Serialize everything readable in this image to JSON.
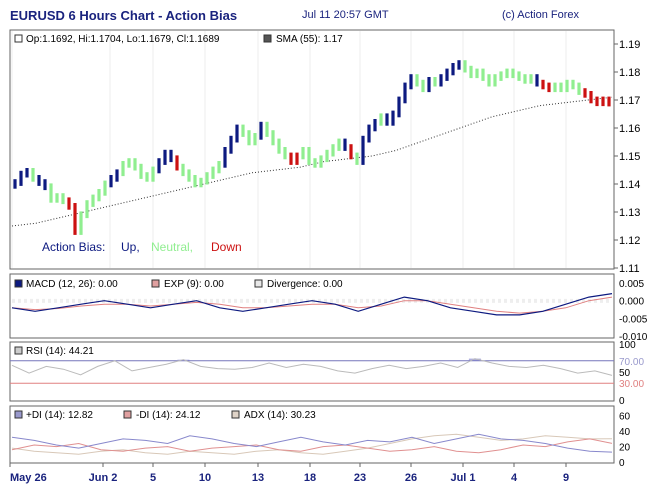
{
  "header": {
    "title": "EURUSD 6 Hours Chart - Action Bias",
    "timestamp": "Jul 11 20:57 GMT",
    "copyright": "(c) Action Forex"
  },
  "colors": {
    "up": "#0d1a80",
    "neutral": "#90ee90",
    "down": "#cc1111",
    "sma": "#333333",
    "macd": "#0d1a80",
    "exp": "#e08080",
    "rsi": "#bbbbbb",
    "rsi_fill": "#7777cc",
    "pdi": "#8888cc",
    "mdi": "#e09090",
    "adx": "#d8c8b8"
  },
  "chart_data": [
    {
      "type": "ohlc",
      "panel": "price",
      "legend": {
        "ohlc": "Op:1.1692, Hi:1.1704, Lo:1.1679, Cl:1.1689",
        "sma": "SMA (55): 1.17"
      },
      "bias_legend": {
        "label": "Action Bias:",
        "up": "Up,",
        "neutral": "Neutral,",
        "down": "Down"
      },
      "ylim": [
        1.11,
        1.195
      ],
      "yticks": [
        "1.19",
        "1.18",
        "1.17",
        "1.16",
        "1.15",
        "1.14",
        "1.13",
        "1.12",
        "1.11"
      ],
      "xticks": [
        "May 26",
        "Jun 2",
        "5",
        "10",
        "13",
        "18",
        "23",
        "26",
        "Jul 1",
        "4",
        "9"
      ],
      "closes": [
        1.1405,
        1.1435,
        1.1445,
        1.142,
        1.1405,
        1.139,
        1.1345,
        1.1355,
        1.134,
        1.132,
        1.123,
        1.129,
        1.133,
        1.135,
        1.137,
        1.14,
        1.142,
        1.144,
        1.147,
        1.148,
        1.146,
        1.143,
        1.142,
        1.145,
        1.148,
        1.151,
        1.149,
        1.146,
        1.144,
        1.142,
        1.14,
        1.141,
        1.143,
        1.145,
        1.147,
        1.152,
        1.156,
        1.16,
        1.158,
        1.155,
        1.157,
        1.161,
        1.158,
        1.155,
        1.152,
        1.15,
        1.148,
        1.15,
        1.152,
        1.148,
        1.147,
        1.149,
        1.151,
        1.153,
        1.155,
        1.153,
        1.15,
        1.148,
        1.156,
        1.16,
        1.162,
        1.164,
        1.162,
        1.165,
        1.17,
        1.175,
        1.178,
        1.176,
        1.174,
        1.177,
        1.176,
        1.178,
        1.18,
        1.182,
        1.183,
        1.181,
        1.179,
        1.18,
        1.178,
        1.176,
        1.178,
        1.179,
        1.18,
        1.179,
        1.178,
        1.177,
        1.178,
        1.176,
        1.175,
        1.174,
        1.175,
        1.174,
        1.176,
        1.175,
        1.173,
        1.172,
        1.17,
        1.169,
        1.17,
        1.1689
      ],
      "bias": [
        "u",
        "u",
        "u",
        "n",
        "u",
        "u",
        "n",
        "n",
        "n",
        "d",
        "d",
        "n",
        "n",
        "n",
        "n",
        "n",
        "u",
        "u",
        "n",
        "n",
        "n",
        "n",
        "n",
        "n",
        "u",
        "u",
        "u",
        "d",
        "n",
        "n",
        "n",
        "n",
        "n",
        "n",
        "n",
        "u",
        "u",
        "u",
        "n",
        "n",
        "n",
        "u",
        "n",
        "n",
        "n",
        "n",
        "d",
        "d",
        "n",
        "n",
        "n",
        "n",
        "n",
        "n",
        "n",
        "u",
        "d",
        "n",
        "u",
        "u",
        "u",
        "n",
        "u",
        "u",
        "u",
        "u",
        "u",
        "n",
        "n",
        "u",
        "n",
        "u",
        "u",
        "u",
        "u",
        "n",
        "n",
        "n",
        "n",
        "n",
        "n",
        "n",
        "n",
        "n",
        "n",
        "n",
        "n",
        "u",
        "d",
        "d",
        "n",
        "n",
        "n",
        "n",
        "n",
        "d",
        "d",
        "d",
        "d",
        "d"
      ],
      "sma55": [
        1.125,
        1.126,
        1.128,
        1.13,
        1.132,
        1.134,
        1.136,
        1.138,
        1.14,
        1.142,
        1.144,
        1.145,
        1.146,
        1.148,
        1.149,
        1.15,
        1.152,
        1.155,
        1.158,
        1.161,
        1.164,
        1.166,
        1.168,
        1.169,
        1.17,
        1.171
      ]
    },
    {
      "type": "line",
      "panel": "macd",
      "legend": {
        "macd": "MACD (12, 26): 0.00",
        "exp": "EXP (9): 0.00",
        "div": "Divergence: 0.00"
      },
      "ylim": [
        -0.0105,
        0.0075
      ],
      "yticks": [
        "0.005",
        "0.000",
        "-0.005",
        "-0.010"
      ],
      "series": [
        {
          "name": "MACD (12, 26)",
          "values": [
            -0.002,
            -0.003,
            -0.002,
            -0.001,
            0.0,
            -0.001,
            -0.002,
            -0.001,
            0.0,
            -0.002,
            -0.003,
            -0.002,
            -0.001,
            0.0,
            -0.001,
            -0.003,
            -0.001,
            0.001,
            0.0,
            -0.002,
            -0.003,
            -0.004,
            -0.004,
            -0.003,
            -0.001,
            0.001,
            0.002
          ]
        },
        {
          "name": "EXP (9)",
          "values": [
            -0.002,
            -0.0025,
            -0.0022,
            -0.0015,
            -0.001,
            -0.001,
            -0.0015,
            -0.001,
            -0.0005,
            -0.001,
            -0.002,
            -0.002,
            -0.0015,
            -0.001,
            -0.001,
            -0.002,
            -0.0015,
            0.0,
            0.0,
            -0.001,
            -0.002,
            -0.003,
            -0.0035,
            -0.003,
            -0.002,
            0.0,
            0.001
          ]
        }
      ]
    },
    {
      "type": "line",
      "panel": "rsi",
      "legend": {
        "rsi": "RSI (14): 44.21"
      },
      "ylim": [
        0,
        100
      ],
      "yticks": [
        "100",
        "70.00",
        "50",
        "30.00",
        "0"
      ],
      "overbought": 70,
      "oversold": 30,
      "series": [
        {
          "name": "RSI (14)",
          "values": [
            62,
            48,
            60,
            55,
            45,
            60,
            70,
            52,
            58,
            64,
            72,
            60,
            56,
            55,
            58,
            66,
            58,
            64,
            60,
            52,
            48,
            56,
            62,
            56,
            60,
            66,
            58,
            74,
            66,
            60,
            58,
            62,
            56,
            48,
            52,
            44
          ]
        }
      ]
    },
    {
      "type": "line",
      "panel": "dmi",
      "legend": {
        "pdi": "+DI (14): 12.82",
        "mdi": "-DI (14): 24.12",
        "adx": "ADX (14): 30.23"
      },
      "ylim": [
        0,
        70
      ],
      "yticks": [
        "60",
        "40",
        "20",
        "0"
      ],
      "series": [
        {
          "name": "+DI (14)",
          "values": [
            32,
            28,
            22,
            18,
            24,
            30,
            28,
            24,
            34,
            30,
            24,
            20,
            26,
            32,
            26,
            22,
            28,
            26,
            32,
            24,
            30,
            36,
            30,
            28,
            24,
            18,
            14,
            12.82
          ]
        },
        {
          "name": "-DI (14)",
          "values": [
            16,
            22,
            20,
            24,
            16,
            14,
            18,
            20,
            14,
            18,
            20,
            22,
            16,
            14,
            20,
            22,
            18,
            14,
            16,
            20,
            14,
            12,
            16,
            22,
            20,
            26,
            30,
            24.12
          ]
        },
        {
          "name": "ADX (14)",
          "values": [
            18,
            14,
            12,
            10,
            14,
            16,
            12,
            10,
            14,
            12,
            10,
            14,
            16,
            12,
            10,
            14,
            18,
            24,
            30,
            34,
            36,
            32,
            28,
            30,
            34,
            32,
            30,
            30.23
          ]
        }
      ]
    }
  ]
}
